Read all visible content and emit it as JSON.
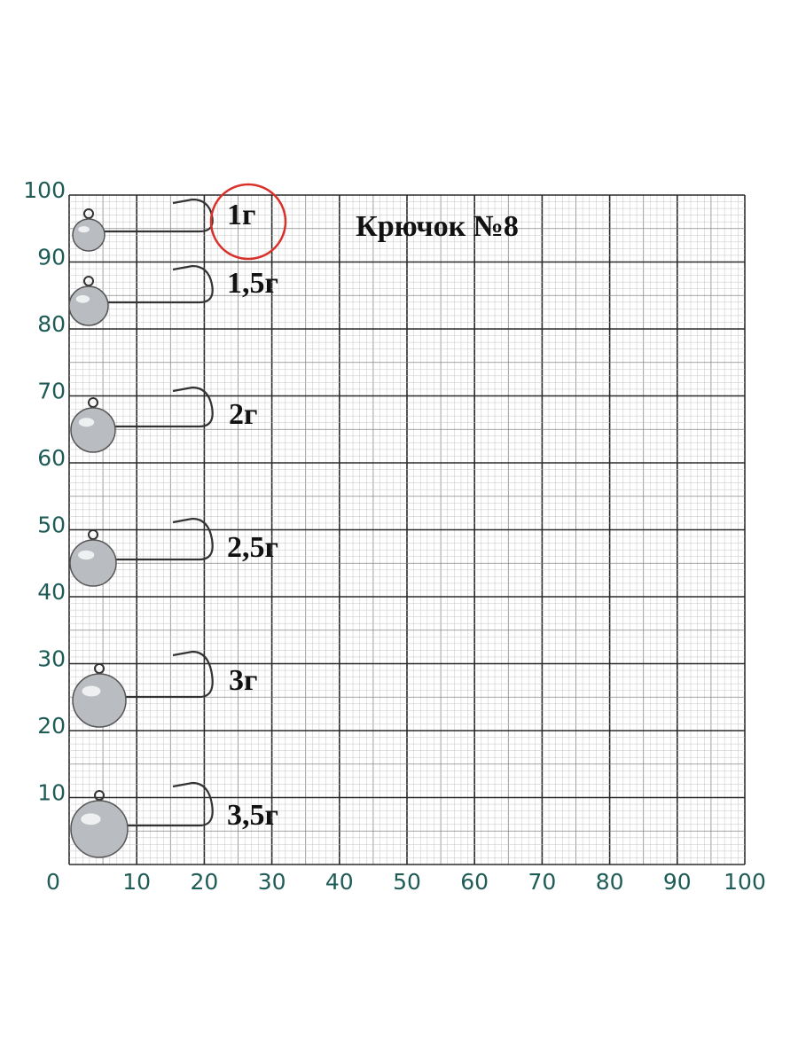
{
  "title": "Крючок №8",
  "x_labels": [
    "0",
    "10",
    "20",
    "30",
    "40",
    "50",
    "60",
    "70",
    "80",
    "90",
    "100"
  ],
  "y_labels": [
    "10",
    "20",
    "30",
    "40",
    "50",
    "60",
    "70",
    "80",
    "90",
    "100"
  ],
  "weights": [
    "1г",
    "1,5г",
    "2г",
    "2,5г",
    "3г",
    "3,5г"
  ]
}
